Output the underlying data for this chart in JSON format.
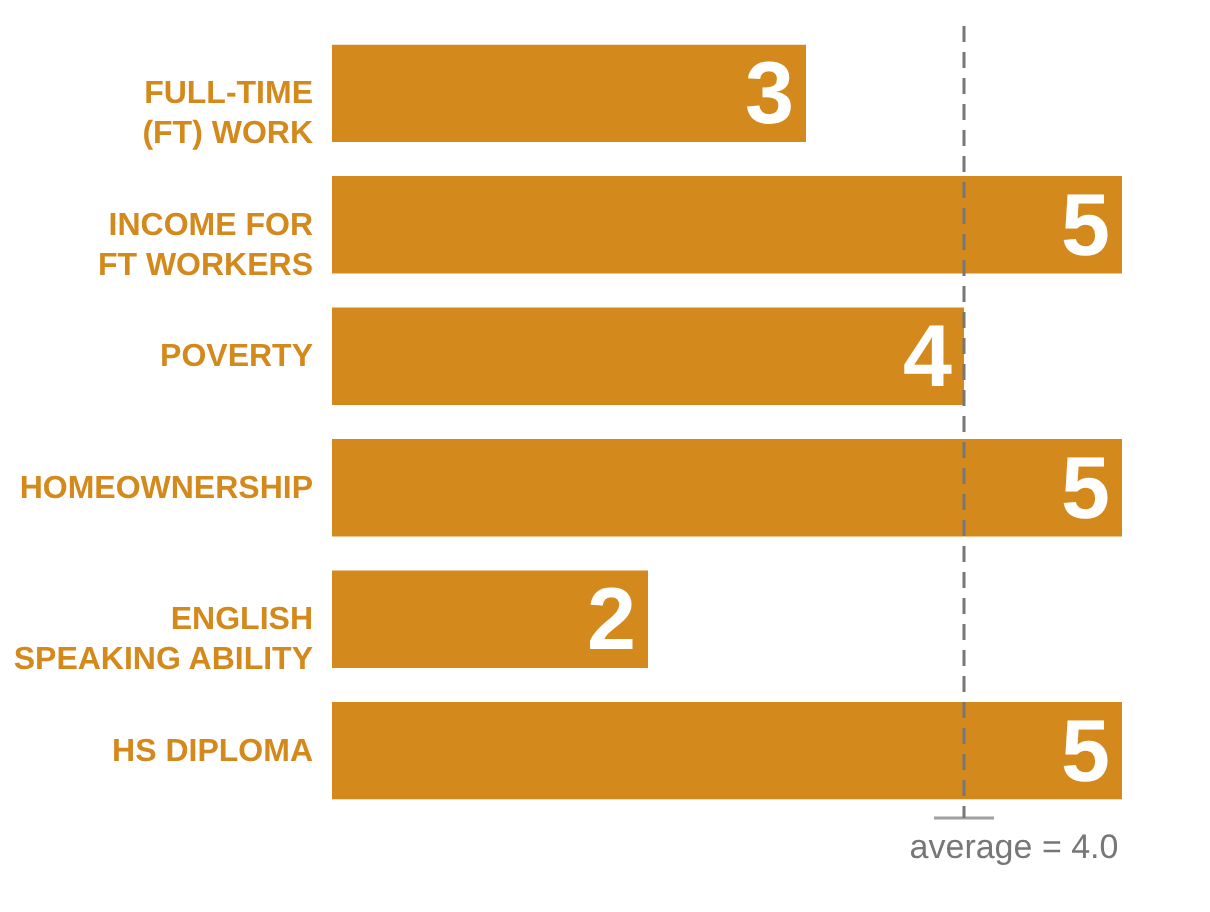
{
  "chart_data": {
    "type": "bar",
    "orientation": "horizontal",
    "categories": [
      "FULL-TIME\n(FT) WORK",
      "INCOME FOR\nFT WORKERS",
      "POVERTY",
      "HOMEOWNERSHIP",
      "ENGLISH\nSPEAKING ABILITY",
      "HS DIPLOMA"
    ],
    "values": [
      3,
      5,
      4,
      5,
      2,
      5
    ],
    "color": "#d4891c",
    "xlim": [
      0,
      5
    ],
    "tick_labels": "y",
    "data_labels": true,
    "ref_lines": [
      {
        "axis": "x",
        "value": 4.0,
        "label": "average = 4.0",
        "color": "#777777",
        "line_style": "dashed"
      }
    ]
  }
}
